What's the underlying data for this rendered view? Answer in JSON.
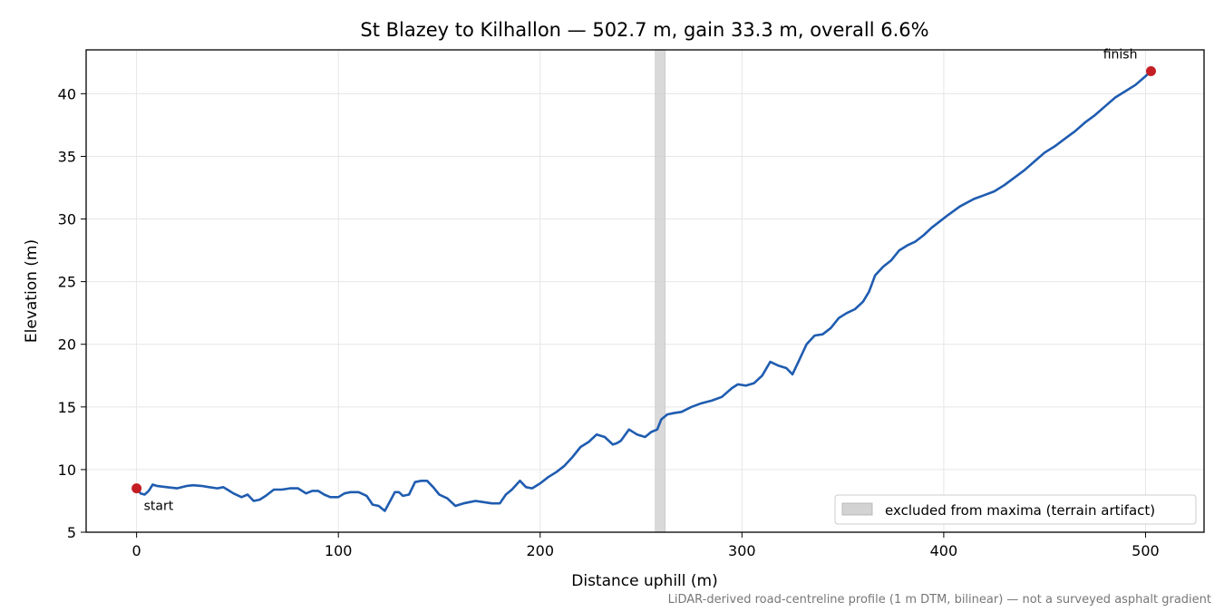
{
  "chart_data": {
    "type": "line",
    "title": "St Blazey to Kilhallon — 502.7 m, gain 33.3 m, overall 6.6%",
    "xlabel": "Distance uphill (m)",
    "ylabel": "Elevation (m)",
    "xlim": [
      -25,
      529
    ],
    "ylim": [
      5,
      43.5
    ],
    "xticks": [
      0,
      100,
      200,
      300,
      400,
      500
    ],
    "yticks": [
      5,
      10,
      15,
      20,
      25,
      30,
      35,
      40
    ],
    "grid": true,
    "legend_placement": "lower-right",
    "colors": {
      "line": "#1f5cb0",
      "marker": "#c41e24",
      "band": "#d3d3d3",
      "grid": "#e6e6e6",
      "footnote": "#777777"
    },
    "excluded_band": {
      "x": [
        257,
        262
      ],
      "label": "excluded from maxima (terrain artifact)"
    },
    "markers": [
      {
        "label": "start",
        "x": 0,
        "y": 8.5
      },
      {
        "label": "finish",
        "x": 502.7,
        "y": 41.8
      }
    ],
    "footnote": "LiDAR-derived road-centreline profile (1 m DTM, bilinear) — not a surveyed asphalt gradient",
    "series": [
      {
        "x": [
          0,
          2,
          4,
          6,
          8,
          10,
          15,
          20,
          25,
          28,
          32,
          36,
          40,
          43,
          46,
          48,
          52,
          55,
          58,
          61,
          64,
          68,
          72,
          76,
          80,
          84,
          87,
          90,
          93,
          96,
          100,
          103,
          106,
          110,
          114,
          117,
          120,
          123,
          126,
          128,
          130,
          132,
          135,
          138,
          141,
          144,
          147,
          150,
          154,
          158,
          162,
          165,
          168,
          172,
          176,
          180,
          183,
          186,
          190,
          193,
          196,
          200,
          204,
          208,
          212,
          216,
          220,
          224,
          228,
          232,
          236,
          238,
          240,
          244,
          248,
          252,
          255,
          258,
          260,
          263,
          266,
          270,
          275,
          280,
          285,
          290,
          295,
          298,
          302,
          306,
          310,
          314,
          318,
          322,
          325,
          328,
          332,
          336,
          340,
          344,
          348,
          352,
          356,
          360,
          363,
          366,
          370,
          374,
          378,
          382,
          386,
          390,
          394,
          398,
          402,
          408,
          415,
          420,
          425,
          430,
          435,
          440,
          445,
          450,
          455,
          460,
          465,
          470,
          475,
          480,
          485,
          490,
          495,
          500,
          502.7
        ],
        "y": [
          8.5,
          8.1,
          8.0,
          8.3,
          8.8,
          8.7,
          8.6,
          8.5,
          8.7,
          8.75,
          8.7,
          8.6,
          8.5,
          8.6,
          8.3,
          8.1,
          7.8,
          8.0,
          7.5,
          7.6,
          7.9,
          8.4,
          8.4,
          8.5,
          8.5,
          8.1,
          8.3,
          8.3,
          8.0,
          7.8,
          7.8,
          8.1,
          8.2,
          8.2,
          7.9,
          7.2,
          7.1,
          6.7,
          7.6,
          8.2,
          8.2,
          7.9,
          8.0,
          9.0,
          9.1,
          9.1,
          8.6,
          8.0,
          7.7,
          7.1,
          7.3,
          7.4,
          7.5,
          7.4,
          7.3,
          7.3,
          8.0,
          8.4,
          9.1,
          8.6,
          8.5,
          8.9,
          9.4,
          9.8,
          10.3,
          11.0,
          11.8,
          12.2,
          12.8,
          12.6,
          12.0,
          12.1,
          12.3,
          13.2,
          12.8,
          12.6,
          13.0,
          13.2,
          14.0,
          14.4,
          14.5,
          14.6,
          15.0,
          15.3,
          15.5,
          15.8,
          16.5,
          16.8,
          16.7,
          16.9,
          17.5,
          18.6,
          18.3,
          18.1,
          17.6,
          18.6,
          20.0,
          20.7,
          20.8,
          21.3,
          22.1,
          22.5,
          22.8,
          23.4,
          24.2,
          25.5,
          26.2,
          26.7,
          27.5,
          27.9,
          28.2,
          28.7,
          29.3,
          29.8,
          30.3,
          31.0,
          31.6,
          31.9,
          32.2,
          32.7,
          33.3,
          33.9,
          34.6,
          35.3,
          35.8,
          36.4,
          37.0,
          37.7,
          38.3,
          39.0,
          39.7,
          40.2,
          40.7,
          41.4,
          41.8
        ]
      }
    ]
  }
}
